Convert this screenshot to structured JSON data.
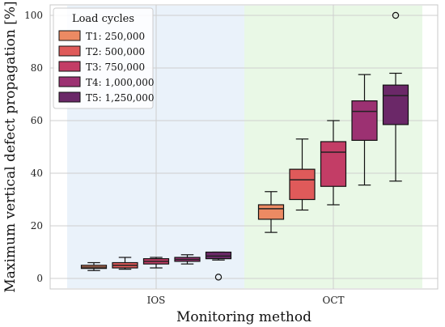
{
  "chart_data": {
    "type": "box",
    "xlabel": "Monitoring method",
    "ylabel": "Maximum vertical defect propagation [%]",
    "ylim": [
      -4,
      104
    ],
    "yticks": [
      0,
      20,
      40,
      60,
      80,
      100
    ],
    "grid": true,
    "legend": {
      "title": "Load cycles",
      "placement": "top-left"
    },
    "groups": [
      {
        "name": "IOS",
        "background": "#eaf2fa"
      },
      {
        "name": "OCT",
        "background": "#e9f8e6"
      }
    ],
    "series": [
      {
        "name": "T1: 250,000",
        "color": "#ec8a63",
        "boxes": [
          {
            "group": "IOS",
            "min": 3.0,
            "q1": 3.8,
            "median": 4.3,
            "q3": 5.0,
            "max": 6.0,
            "outliers": []
          },
          {
            "group": "OCT",
            "min": 17.5,
            "q1": 22.5,
            "median": 26.5,
            "q3": 28.0,
            "max": 33.0,
            "outliers": []
          }
        ]
      },
      {
        "name": "T2: 500,000",
        "color": "#df5a5a",
        "boxes": [
          {
            "group": "IOS",
            "min": 3.5,
            "q1": 4.0,
            "median": 5.0,
            "q3": 6.0,
            "max": 8.0,
            "outliers": []
          },
          {
            "group": "OCT",
            "min": 26.0,
            "q1": 30.0,
            "median": 37.5,
            "q3": 41.5,
            "max": 53.0,
            "outliers": []
          }
        ]
      },
      {
        "name": "T3: 750,000",
        "color": "#c33d66",
        "boxes": [
          {
            "group": "IOS",
            "min": 4.0,
            "q1": 5.5,
            "median": 6.5,
            "q3": 7.5,
            "max": 8.0,
            "outliers": []
          },
          {
            "group": "OCT",
            "min": 28.0,
            "q1": 35.0,
            "median": 48.0,
            "q3": 52.0,
            "max": 60.0,
            "outliers": []
          }
        ]
      },
      {
        "name": "T4: 1,000,000",
        "color": "#9c3172",
        "boxes": [
          {
            "group": "IOS",
            "min": 5.5,
            "q1": 6.5,
            "median": 7.2,
            "q3": 8.0,
            "max": 9.0,
            "outliers": []
          },
          {
            "group": "OCT",
            "min": 35.5,
            "q1": 52.5,
            "median": 63.5,
            "q3": 67.5,
            "max": 77.5,
            "outliers": []
          }
        ]
      },
      {
        "name": "T5: 1,250,000",
        "color": "#6b2868",
        "boxes": [
          {
            "group": "IOS",
            "min": 7.0,
            "q1": 7.5,
            "median": 8.5,
            "q3": 10.0,
            "max": 10.0,
            "outliers": [
              0.5
            ]
          },
          {
            "group": "OCT",
            "min": 37.0,
            "q1": 58.5,
            "median": 69.5,
            "q3": 73.5,
            "max": 78.0,
            "outliers": [
              100
            ]
          }
        ]
      }
    ]
  }
}
